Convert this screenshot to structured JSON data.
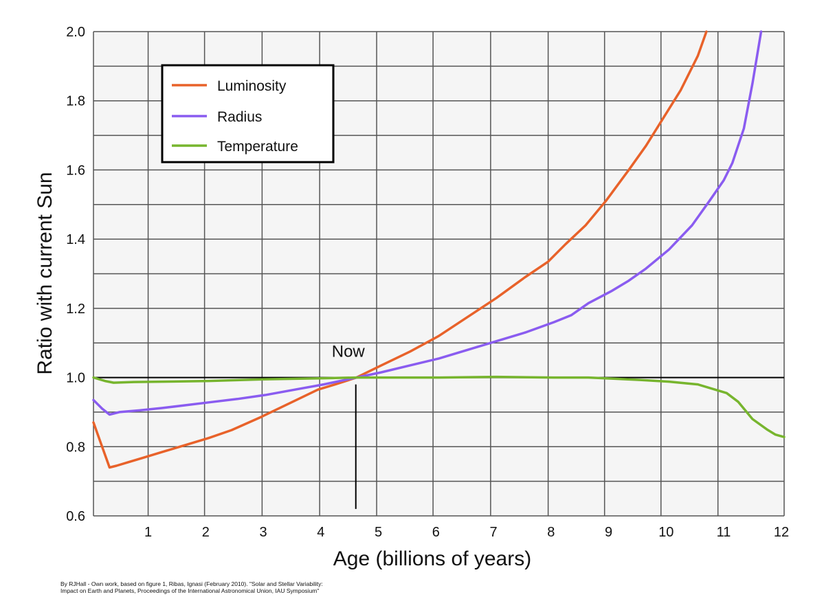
{
  "chart_data": {
    "type": "line",
    "xlabel": "Age (billions of years)",
    "ylabel": "Ratio with current Sun",
    "xlim": [
      0,
      12
    ],
    "ylim": [
      0.6,
      2.0
    ],
    "xticks": [
      1,
      2,
      3,
      4,
      5,
      6,
      7,
      8,
      9,
      10,
      11,
      12
    ],
    "xtick_labels": [
      "1",
      "2",
      "3",
      "4",
      "5",
      "6",
      "7",
      "8",
      "9",
      "10",
      "11",
      "12"
    ],
    "yticks": [
      0.6,
      0.8,
      1.0,
      1.2,
      1.4,
      1.6,
      1.8,
      2.0
    ],
    "ytick_labels": [
      "0.6",
      "0.8",
      "1.0",
      "1.2",
      "1.4",
      "1.6",
      "1.8",
      "2.0"
    ],
    "x_gridlines": [
      0.95,
      1.93,
      2.93,
      3.93,
      4.92,
      5.9,
      6.9,
      7.9,
      8.88,
      9.86,
      10.85
    ],
    "grid": true,
    "legend_position": "top-left",
    "reference_line": 1.0,
    "annotation": {
      "text": "Now",
      "x": 4.57,
      "y_from": 0.62,
      "y_to": 0.98
    },
    "series": [
      {
        "name": "Luminosity",
        "color": "#e8622a",
        "x": [
          0.0,
          0.15,
          0.28,
          0.4,
          0.6,
          0.9,
          1.2,
          1.6,
          2.0,
          2.4,
          2.9,
          3.4,
          3.9,
          4.2,
          4.57,
          5.0,
          5.5,
          6.0,
          6.5,
          7.0,
          7.5,
          7.9,
          8.2,
          8.55,
          8.9,
          9.3,
          9.6,
          9.9,
          10.2,
          10.5,
          10.65
        ],
        "y": [
          0.87,
          0.8,
          0.74,
          0.745,
          0.755,
          0.77,
          0.785,
          0.805,
          0.825,
          0.848,
          0.885,
          0.925,
          0.965,
          0.98,
          1.0,
          1.035,
          1.075,
          1.12,
          1.175,
          1.23,
          1.29,
          1.335,
          1.385,
          1.44,
          1.51,
          1.6,
          1.67,
          1.75,
          1.83,
          1.93,
          2.0
        ]
      },
      {
        "name": "Radius",
        "color": "#8a5cf0",
        "x": [
          0.0,
          0.15,
          0.28,
          0.45,
          0.8,
          1.2,
          1.6,
          2.0,
          2.5,
          3.0,
          3.5,
          4.0,
          4.57,
          5.0,
          5.5,
          6.0,
          6.5,
          7.0,
          7.5,
          8.0,
          8.3,
          8.6,
          9.0,
          9.3,
          9.6,
          10.0,
          10.4,
          10.7,
          10.95,
          11.1,
          11.3,
          11.45,
          11.55,
          11.6
        ],
        "y": [
          0.935,
          0.91,
          0.893,
          0.9,
          0.905,
          0.912,
          0.92,
          0.928,
          0.938,
          0.95,
          0.965,
          0.98,
          1.0,
          1.015,
          1.035,
          1.055,
          1.08,
          1.105,
          1.13,
          1.16,
          1.18,
          1.215,
          1.25,
          1.28,
          1.315,
          1.37,
          1.44,
          1.51,
          1.57,
          1.62,
          1.72,
          1.85,
          1.95,
          2.0
        ]
      },
      {
        "name": "Temperature",
        "color": "#77b52e",
        "x": [
          0.0,
          0.2,
          0.35,
          0.7,
          1.2,
          2.0,
          3.0,
          4.0,
          4.57,
          5.0,
          6.0,
          7.0,
          8.0,
          8.6,
          9.0,
          9.5,
          10.0,
          10.5,
          11.0,
          11.2,
          11.45,
          11.7,
          11.85,
          12.0
        ],
        "y": [
          1.0,
          0.99,
          0.985,
          0.987,
          0.988,
          0.99,
          0.995,
          0.998,
          1.0,
          1.0,
          1.0,
          1.002,
          1.0,
          1.0,
          0.997,
          0.993,
          0.988,
          0.98,
          0.955,
          0.93,
          0.88,
          0.85,
          0.835,
          0.828
        ]
      }
    ]
  },
  "credit": {
    "line1": "By RJHall - Own work, based on figure 1, Ribas, Ignasi (February 2010). \"Solar and Stellar Variability:",
    "line2": "Impact on Earth and Planets, Proceedings of the International Astronomical Union, IAU Symposium\""
  }
}
